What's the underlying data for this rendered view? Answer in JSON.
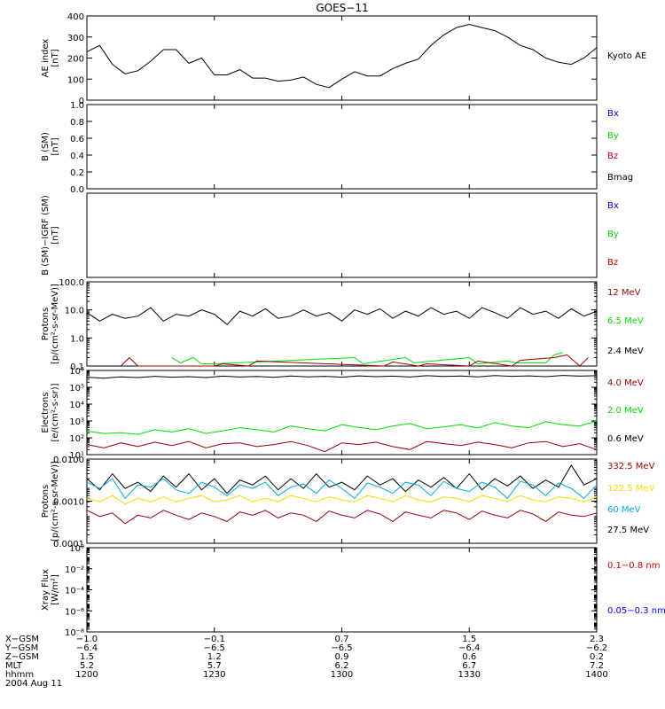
{
  "title": "GOES−11",
  "colors": {
    "black": "#000000",
    "blue": "#0000ff",
    "green": "#00dd00",
    "red": "#cc0000",
    "darkred": "#990000",
    "yellow": "#eedd00",
    "cyan": "#00aadd"
  },
  "chart_data": [
    {
      "type": "line",
      "ylabel": [
        "AE index",
        "[nT]"
      ],
      "ylim": [
        0,
        400
      ],
      "yscale": "linear",
      "yticks": [
        "0",
        "100",
        "200",
        "300",
        "400"
      ],
      "legend": [
        {
          "name": "Kyoto AE",
          "color": "black"
        }
      ],
      "series": [
        {
          "name": "Kyoto AE",
          "color": "black",
          "x_min": [
            0,
            120
          ],
          "x": [
            0,
            3,
            6,
            9,
            12,
            15,
            18,
            21,
            24,
            27,
            30,
            33,
            36,
            39,
            42,
            45,
            48,
            51,
            54,
            57,
            60,
            63,
            66,
            69,
            72,
            75,
            78,
            81,
            84,
            87,
            90,
            93,
            96,
            99,
            102,
            105,
            108,
            111,
            114,
            117,
            120
          ],
          "y": [
            230,
            260,
            170,
            125,
            140,
            185,
            240,
            240,
            175,
            200,
            120,
            120,
            145,
            105,
            105,
            90,
            95,
            110,
            75,
            60,
            100,
            135,
            115,
            115,
            150,
            175,
            195,
            260,
            310,
            345,
            360,
            345,
            330,
            300,
            260,
            240,
            200,
            180,
            170,
            200,
            250
          ]
        }
      ]
    },
    {
      "type": "line",
      "ylabel": [
        "B (SM)",
        "[nT]"
      ],
      "ylim": [
        0,
        1
      ],
      "yscale": "linear",
      "yticks": [
        "0.0",
        "0.2",
        "0.4",
        "0.6",
        "0.8",
        "1.0"
      ],
      "legend": [
        {
          "name": "Bx",
          "color": "blue"
        },
        {
          "name": "By",
          "color": "green"
        },
        {
          "name": "Bz",
          "color": "red"
        },
        {
          "name": "Bmag",
          "color": "black"
        }
      ],
      "series": []
    },
    {
      "type": "line",
      "ylabel": [
        "B (SM)−IGRF (SM)",
        "[nT]"
      ],
      "ylim": [
        0,
        1
      ],
      "yscale": "linear",
      "yticks": [],
      "legend": [
        {
          "name": "Bx",
          "color": "blue"
        },
        {
          "name": "By",
          "color": "green"
        },
        {
          "name": "Bz",
          "color": "red"
        }
      ],
      "series": []
    },
    {
      "type": "line",
      "ylabel": [
        "Protons",
        "[p/(cm²-s-sr-MeV)]"
      ],
      "ylim": [
        0.1,
        100
      ],
      "yscale": "log",
      "yticks": [
        "0.1",
        "1.0",
        "10.0",
        "100.0"
      ],
      "legend": [
        {
          "name": "12 MeV",
          "color": "darkred"
        },
        {
          "name": "6.5 MeV",
          "color": "green"
        },
        {
          "name": "2.4 MeV",
          "color": "black"
        }
      ],
      "series": [
        {
          "name": "2.4 MeV",
          "color": "black",
          "x_min": [
            0,
            120
          ],
          "x": [
            0,
            3,
            6,
            9,
            12,
            15,
            18,
            21,
            24,
            27,
            30,
            33,
            36,
            39,
            42,
            45,
            48,
            51,
            54,
            57,
            60,
            63,
            66,
            69,
            72,
            75,
            78,
            81,
            84,
            87,
            90,
            93,
            96,
            99,
            102,
            105,
            108,
            111,
            114,
            117,
            120
          ],
          "y": [
            8,
            4,
            7,
            5,
            6,
            12,
            4,
            7,
            6,
            10,
            7,
            3,
            9,
            6,
            11,
            5,
            6,
            10,
            6,
            8,
            4,
            10,
            7,
            11,
            5,
            9,
            6,
            12,
            7,
            9,
            5,
            12,
            8,
            5,
            12,
            7,
            9,
            5,
            11,
            6,
            9
          ]
        },
        {
          "name": "6.5 MeV",
          "color": "green",
          "x_min": [
            0,
            120
          ],
          "x": [
            20,
            22,
            25,
            27,
            30,
            63,
            65,
            75,
            77,
            90,
            92,
            99,
            101,
            108,
            110,
            112
          ],
          "y": [
            0.2,
            0.13,
            0.2,
            0.12,
            0.12,
            0.2,
            0.12,
            0.2,
            0.13,
            0.2,
            0.12,
            0.15,
            0.13,
            0.13,
            0.25,
            0.3
          ]
        },
        {
          "name": "12 MeV",
          "color": "darkred",
          "x_min": [
            0,
            120
          ],
          "x": [
            8,
            10,
            12,
            30,
            32,
            38,
            40,
            70,
            72,
            78,
            80,
            90,
            92,
            100,
            102,
            110,
            113,
            116,
            118
          ],
          "y": [
            0.1,
            0.2,
            0.1,
            0.1,
            0.12,
            0.1,
            0.15,
            0.1,
            0.14,
            0.1,
            0.12,
            0.1,
            0.15,
            0.1,
            0.16,
            0.2,
            0.25,
            0.1,
            0.2
          ]
        }
      ]
    },
    {
      "type": "line",
      "ylabel": [
        "Electrons",
        "[e/(cm²-s-sr)]"
      ],
      "ylim": [
        10,
        1000000
      ],
      "yscale": "log",
      "yticks": [
        "10¹",
        "10²",
        "10³",
        "10⁴",
        "10⁵",
        "10⁶"
      ],
      "legend": [
        {
          "name": "4.0 MeV",
          "color": "darkred"
        },
        {
          "name": "2.0 MeV",
          "color": "green"
        },
        {
          "name": "0.6 MeV",
          "color": "black"
        }
      ],
      "series": [
        {
          "name": "0.6 MeV",
          "color": "black",
          "x_min": [
            0,
            120
          ],
          "x": [
            0,
            4,
            8,
            12,
            16,
            20,
            24,
            28,
            32,
            36,
            40,
            44,
            48,
            52,
            56,
            60,
            64,
            68,
            72,
            76,
            80,
            84,
            88,
            92,
            96,
            100,
            104,
            108,
            112,
            116,
            120
          ],
          "y": [
            400000,
            350000,
            420000,
            380000,
            450000,
            400000,
            430000,
            380000,
            460000,
            410000,
            440000,
            390000,
            470000,
            420000,
            450000,
            400000,
            480000,
            430000,
            460000,
            410000,
            490000,
            440000,
            470000,
            420000,
            500000,
            450000,
            480000,
            430000,
            510000,
            460000,
            490000
          ]
        },
        {
          "name": "2.0 MeV",
          "color": "green",
          "x_min": [
            0,
            120
          ],
          "x": [
            0,
            4,
            8,
            12,
            16,
            20,
            24,
            28,
            32,
            36,
            40,
            44,
            48,
            52,
            56,
            60,
            64,
            68,
            72,
            76,
            80,
            84,
            88,
            92,
            96,
            100,
            104,
            108,
            112,
            116,
            120
          ],
          "y": [
            250,
            180,
            200,
            160,
            300,
            220,
            350,
            180,
            260,
            400,
            300,
            220,
            500,
            350,
            260,
            600,
            420,
            300,
            500,
            700,
            350,
            450,
            600,
            380,
            800,
            500,
            400,
            900,
            600,
            500,
            1000
          ]
        },
        {
          "name": "4.0 MeV",
          "color": "darkred",
          "x_min": [
            0,
            120
          ],
          "x": [
            0,
            4,
            8,
            12,
            16,
            20,
            24,
            28,
            32,
            36,
            40,
            44,
            48,
            52,
            56,
            60,
            64,
            68,
            72,
            76,
            80,
            84,
            88,
            92,
            96,
            100,
            104,
            108,
            112,
            116,
            120
          ],
          "y": [
            40,
            25,
            50,
            30,
            55,
            35,
            60,
            25,
            45,
            50,
            30,
            40,
            60,
            35,
            15,
            50,
            40,
            55,
            30,
            20,
            60,
            45,
            35,
            55,
            40,
            25,
            50,
            60,
            30,
            45,
            20
          ]
        }
      ]
    },
    {
      "type": "line",
      "ylabel": [
        "Protons",
        "[p/(cm²-s-sr-MeV)]"
      ],
      "ylim": [
        0.0001,
        0.1
      ],
      "yscale": "log",
      "yticks": [
        "0.0001",
        "0.0010",
        "0.0100"
      ],
      "legend": [
        {
          "name": "332.5 MeV",
          "color": "darkred"
        },
        {
          "name": "122.5 MeV",
          "color": "yellow"
        },
        {
          "name": "60 MeV",
          "color": "cyan"
        },
        {
          "name": "27.5 MeV",
          "color": "black"
        }
      ],
      "series": [
        {
          "name": "27.5 MeV",
          "color": "black",
          "x_min": [
            0,
            120
          ],
          "x": [
            0,
            3,
            6,
            9,
            12,
            15,
            18,
            21,
            24,
            27,
            30,
            33,
            36,
            39,
            42,
            45,
            48,
            51,
            54,
            57,
            60,
            63,
            66,
            69,
            72,
            75,
            78,
            81,
            84,
            87,
            90,
            93,
            96,
            99,
            102,
            105,
            108,
            111,
            114,
            117,
            120
          ],
          "y": [
            0.02,
            0.008,
            0.03,
            0.009,
            0.015,
            0.007,
            0.025,
            0.01,
            0.03,
            0.008,
            0.02,
            0.006,
            0.018,
            0.012,
            0.025,
            0.008,
            0.02,
            0.009,
            0.03,
            0.01,
            0.015,
            0.008,
            0.025,
            0.012,
            0.02,
            0.007,
            0.018,
            0.01,
            0.022,
            0.009,
            0.03,
            0.008,
            0.02,
            0.011,
            0.025,
            0.009,
            0.018,
            0.01,
            0.06,
            0.012,
            0.02
          ]
        },
        {
          "name": "60 MeV",
          "color": "cyan",
          "x_min": [
            0,
            120
          ],
          "x": [
            0,
            3,
            6,
            9,
            12,
            15,
            18,
            21,
            24,
            27,
            30,
            33,
            36,
            39,
            42,
            45,
            48,
            51,
            54,
            57,
            60,
            63,
            66,
            69,
            72,
            75,
            78,
            81,
            84,
            87,
            90,
            93,
            96,
            99,
            102,
            105,
            108,
            111,
            114,
            117,
            120
          ],
          "y": [
            0.015,
            0.009,
            0.02,
            0.004,
            0.012,
            0.01,
            0.02,
            0.008,
            0.006,
            0.015,
            0.01,
            0.005,
            0.012,
            0.009,
            0.015,
            0.005,
            0.01,
            0.013,
            0.006,
            0.018,
            0.009,
            0.004,
            0.014,
            0.01,
            0.006,
            0.015,
            0.012,
            0.005,
            0.016,
            0.009,
            0.007,
            0.015,
            0.01,
            0.004,
            0.016,
            0.012,
            0.005,
            0.014,
            0.009,
            0.004,
            0.012
          ]
        },
        {
          "name": "122.5 MeV",
          "color": "yellow",
          "x_min": [
            0,
            120
          ],
          "x": [
            0,
            3,
            6,
            9,
            12,
            15,
            18,
            21,
            24,
            27,
            30,
            33,
            36,
            39,
            42,
            45,
            48,
            51,
            54,
            57,
            60,
            63,
            66,
            69,
            72,
            75,
            78,
            81,
            84,
            87,
            90,
            93,
            96,
            99,
            102,
            105,
            108,
            111,
            114,
            117,
            120
          ],
          "y": [
            0.004,
            0.003,
            0.005,
            0.0025,
            0.004,
            0.003,
            0.0045,
            0.003,
            0.004,
            0.005,
            0.003,
            0.0035,
            0.005,
            0.003,
            0.004,
            0.003,
            0.005,
            0.004,
            0.003,
            0.0045,
            0.0035,
            0.003,
            0.005,
            0.004,
            0.003,
            0.005,
            0.0035,
            0.003,
            0.0045,
            0.004,
            0.003,
            0.005,
            0.004,
            0.003,
            0.005,
            0.0035,
            0.003,
            0.0045,
            0.004,
            0.003,
            0.0045
          ]
        },
        {
          "name": "332.5 MeV",
          "color": "darkred",
          "x_min": [
            0,
            120
          ],
          "x": [
            0,
            3,
            6,
            9,
            12,
            15,
            18,
            21,
            24,
            27,
            30,
            33,
            36,
            39,
            42,
            45,
            48,
            51,
            54,
            57,
            60,
            63,
            66,
            69,
            72,
            75,
            78,
            81,
            84,
            87,
            90,
            93,
            96,
            99,
            102,
            105,
            108,
            111,
            114,
            117,
            120
          ],
          "y": [
            0.0015,
            0.0009,
            0.0012,
            0.0005,
            0.001,
            0.0008,
            0.0015,
            0.001,
            0.0007,
            0.0012,
            0.0009,
            0.0006,
            0.0013,
            0.001,
            0.0015,
            0.0008,
            0.0012,
            0.001,
            0.0006,
            0.0014,
            0.001,
            0.0008,
            0.0015,
            0.0011,
            0.0006,
            0.0013,
            0.001,
            0.0008,
            0.0015,
            0.0012,
            0.0007,
            0.0014,
            0.001,
            0.0008,
            0.0015,
            0.0011,
            0.0006,
            0.0013,
            0.001,
            0.0009,
            0.0012
          ]
        }
      ]
    },
    {
      "type": "line",
      "ylabel": [
        "Xray  Flux",
        "[W/m²]"
      ],
      "ylim": [
        1e-09,
        1
      ],
      "yscale": "log",
      "yticks": [
        "10⁻⁸",
        "10⁻⁶",
        "10⁻⁴",
        "10⁻²",
        "10⁰"
      ],
      "legend": [
        {
          "name": "0.1−0.8 nm",
          "color": "red"
        },
        {
          "name": "0.05−0.3 nm",
          "color": "blue"
        }
      ],
      "series": []
    }
  ],
  "x_axis": {
    "row_labels": [
      "X−GSM",
      "Y−GSM",
      "Z−GSM",
      "MLT",
      "hhmm"
    ],
    "columns": [
      [
        "−1.0",
        "−6.4",
        "1.5",
        "5.2",
        "1200"
      ],
      [
        "−0.1",
        "−6.5",
        "1.2",
        "5.7",
        "1230"
      ],
      [
        "0.7",
        "−6.5",
        "0.9",
        "6.2",
        "1300"
      ],
      [
        "1.5",
        "−6.4",
        "0.6",
        "6.7",
        "1330"
      ],
      [
        "2.3",
        "−6.2",
        "0.2",
        "7.2",
        "1400"
      ]
    ],
    "date": "2004 Aug 11"
  }
}
